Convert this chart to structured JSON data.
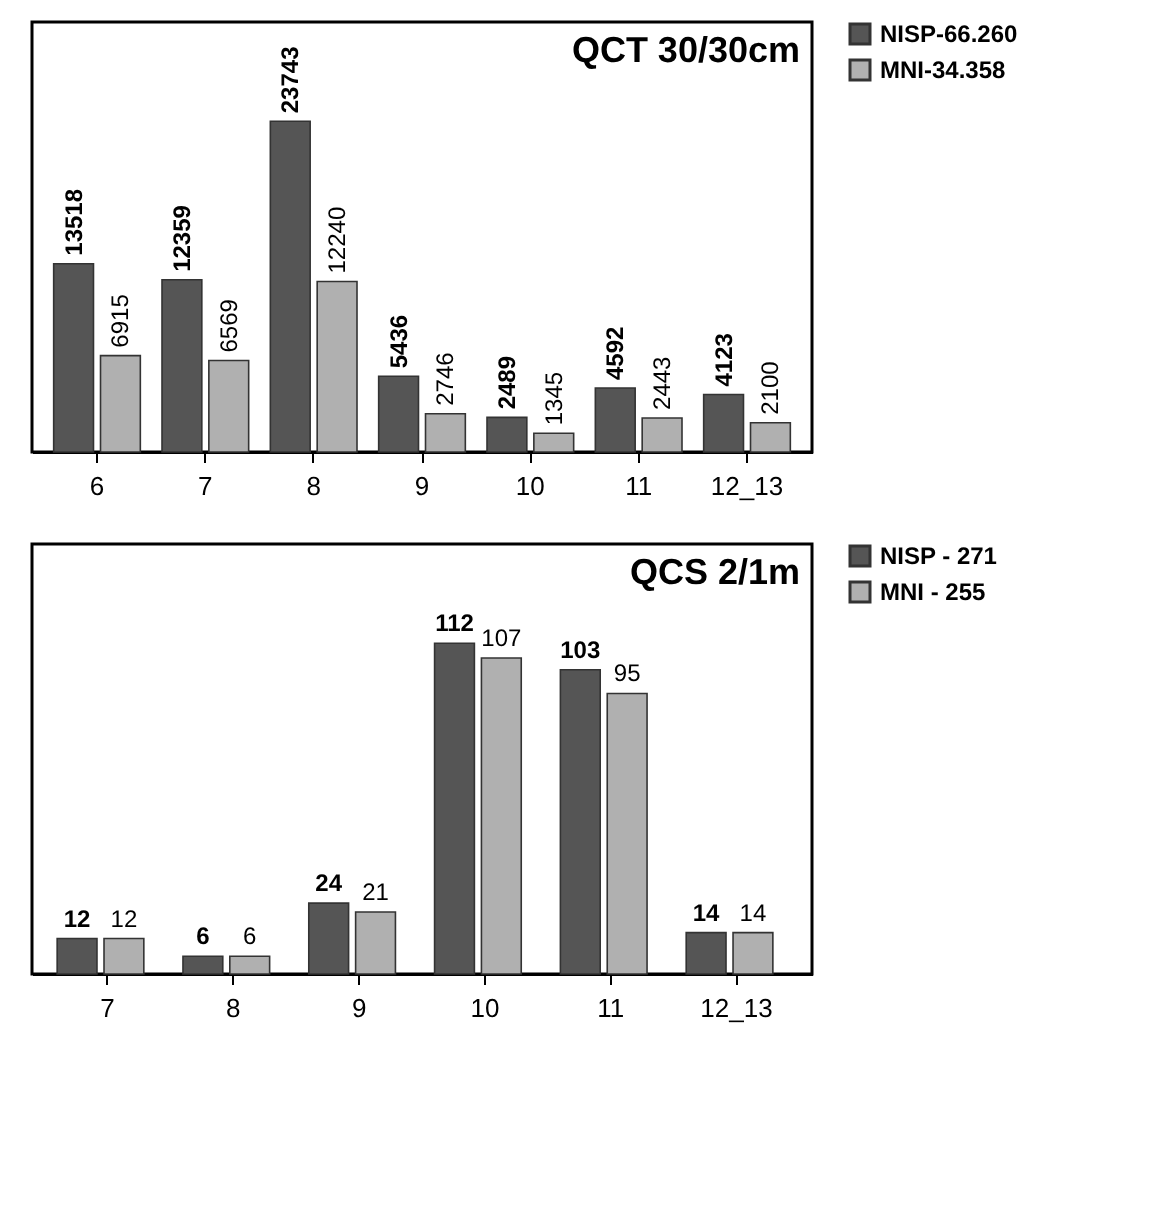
{
  "chart_data": [
    {
      "type": "bar",
      "title": "QCT 30/30cm",
      "categories": [
        "6",
        "7",
        "8",
        "9",
        "10",
        "11",
        "12_13"
      ],
      "series": [
        {
          "name": "NISP-66.260",
          "color": "#555555",
          "values": [
            13518,
            12359,
            23743,
            5436,
            2489,
            4592,
            4123
          ]
        },
        {
          "name": "MNI-34.358",
          "color": "#b0b0b0",
          "values": [
            6915,
            6569,
            12240,
            2746,
            1345,
            2443,
            2100
          ]
        }
      ],
      "data_labels": true,
      "legend": "right",
      "grid": false
    },
    {
      "type": "bar",
      "title": "QCS 2/1m",
      "categories": [
        "7",
        "8",
        "9",
        "10",
        "11",
        "12_13"
      ],
      "series": [
        {
          "name": "NISP - 271",
          "color": "#555555",
          "values": [
            12,
            6,
            24,
            112,
            103,
            14
          ]
        },
        {
          "name": "MNI - 255",
          "color": "#b0b0b0",
          "values": [
            12,
            6,
            21,
            107,
            95,
            14
          ]
        }
      ],
      "data_labels": true,
      "legend": "right",
      "grid": false
    }
  ]
}
